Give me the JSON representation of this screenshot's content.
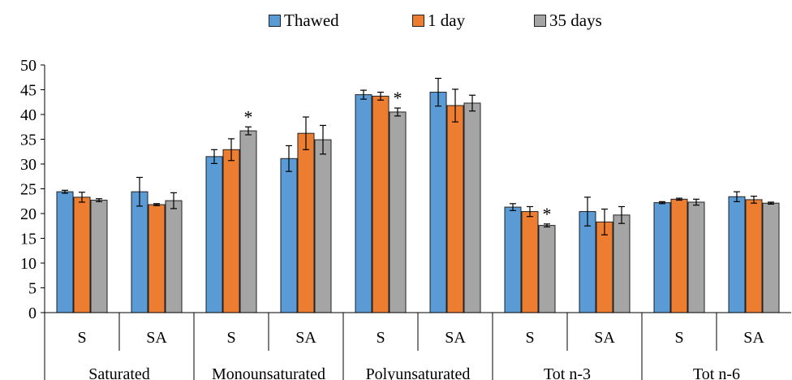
{
  "chart_data": {
    "type": "bar",
    "groups": [
      {
        "label": "Saturated",
        "subcategories": [
          "S",
          "SA"
        ]
      },
      {
        "label": "Monounsaturated",
        "subcategories": [
          "S",
          "SA"
        ]
      },
      {
        "label": "Polyunsaturated",
        "subcategories": [
          "S",
          "SA"
        ]
      },
      {
        "label": "Tot n-3",
        "subcategories": [
          "S",
          "SA"
        ]
      },
      {
        "label": "Tot n-6",
        "subcategories": [
          "S",
          "SA"
        ]
      }
    ],
    "categories": [
      "Saturated S",
      "Saturated SA",
      "Monounsaturated S",
      "Monounsaturated SA",
      "Polyunsaturated S",
      "Polyunsaturated SA",
      "Tot n-3 S",
      "Tot n-3 SA",
      "Tot n-6 S",
      "Tot n-6 SA"
    ],
    "series": [
      {
        "name": "Thawed",
        "color": "#5B9BD5",
        "values": [
          24.4,
          24.4,
          31.5,
          31.1,
          44.0,
          44.5,
          21.3,
          20.4,
          22.2,
          23.4
        ],
        "errors": [
          0.3,
          2.9,
          1.4,
          2.6,
          0.9,
          2.8,
          0.7,
          2.9,
          0.2,
          1.0
        ]
      },
      {
        "name": "1 day",
        "color": "#ED7D31",
        "values": [
          23.3,
          21.8,
          32.9,
          36.2,
          43.7,
          41.8,
          20.4,
          18.3,
          22.9,
          22.8
        ],
        "errors": [
          1.0,
          0.2,
          2.2,
          3.3,
          0.8,
          3.3,
          1.0,
          2.6,
          0.2,
          0.7
        ]
      },
      {
        "name": "35 days",
        "color": "#A5A5A5",
        "values": [
          22.7,
          22.6,
          36.7,
          34.9,
          40.5,
          42.3,
          17.6,
          19.7,
          22.3,
          22.1
        ],
        "errors": [
          0.3,
          1.6,
          0.8,
          2.9,
          0.8,
          1.6,
          0.3,
          1.7,
          0.6,
          0.2
        ]
      }
    ],
    "annotations": [
      {
        "category": 2,
        "series": 2,
        "text": "*"
      },
      {
        "category": 4,
        "series": 2,
        "text": "*"
      },
      {
        "category": 6,
        "series": 2,
        "text": "*"
      }
    ],
    "ylim": [
      0,
      50
    ],
    "yticks": [
      0,
      5,
      10,
      15,
      20,
      25,
      30,
      35,
      40,
      45,
      50
    ],
    "legend_position": "top-center",
    "grid": false,
    "xlabel": "",
    "ylabel": ""
  }
}
